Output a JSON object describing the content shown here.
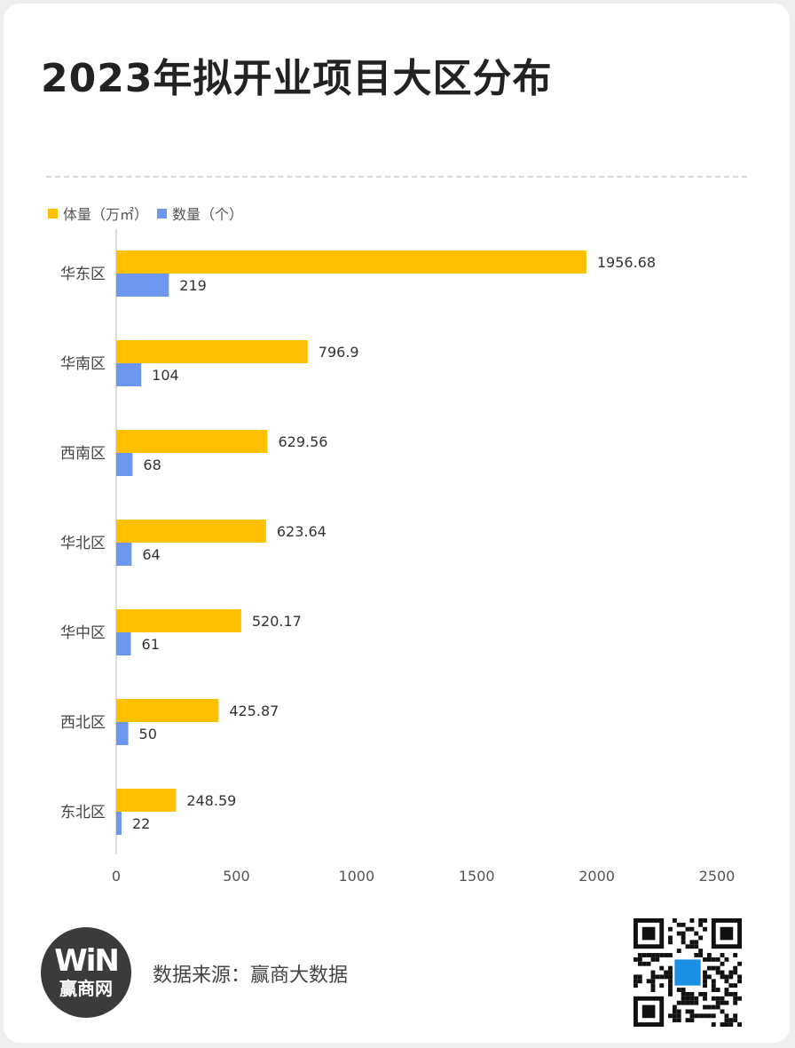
{
  "title": "2023年拟开业项目大区分布",
  "legend": {
    "series0": "体量（万㎡）",
    "series1": "数量（个）"
  },
  "footer": {
    "logo_mark": "WiN",
    "logo_text": "赢商网",
    "source": "数据来源：赢商大数据"
  },
  "colors": {
    "series0": "#FFC000",
    "series1": "#6D96EE",
    "qr_center": "#1a8fe3"
  },
  "chart_data": {
    "type": "bar",
    "orientation": "horizontal",
    "title": "2023年拟开业项目大区分布",
    "categories": [
      "华东区",
      "华南区",
      "西南区",
      "华北区",
      "华中区",
      "西北区",
      "东北区"
    ],
    "series": [
      {
        "name": "体量（万㎡）",
        "values": [
          1956.68,
          796.9,
          629.56,
          623.64,
          520.17,
          425.87,
          248.59
        ],
        "labels": [
          "1956.68",
          "796.9",
          "629.56",
          "623.64",
          "520.17",
          "425.87",
          "248.59"
        ]
      },
      {
        "name": "数量（个）",
        "values": [
          219,
          104,
          68,
          64,
          61,
          50,
          22
        ],
        "labels": [
          "219",
          "104",
          "68",
          "64",
          "61",
          "50",
          "22"
        ]
      }
    ],
    "xlim": [
      0,
      2500
    ],
    "xticks": [
      "0",
      "500",
      "1000",
      "1500",
      "2000",
      "2500"
    ],
    "grid": false,
    "legend_position": "top-left"
  }
}
